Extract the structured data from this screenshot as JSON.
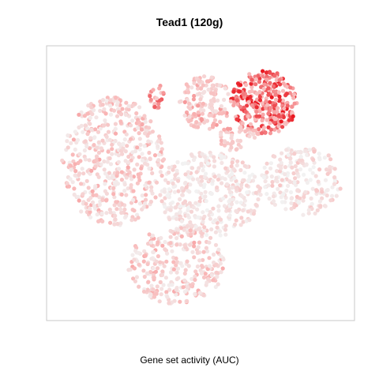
{
  "chart_data": {
    "type": "scatter",
    "title": "Tead1 (120g)",
    "xlabel": "Gene set activity (AUC)",
    "ylabel": "",
    "axes_visible": false,
    "grid": false,
    "legend": "none",
    "palette": {
      "low": "#f2f2f2",
      "mid": "#f9b8b8",
      "high": "#e8111a",
      "frame": "#c8c8c8"
    },
    "clusters": [
      {
        "name": "upper-right",
        "x": [
          0.6,
          0.82
        ],
        "y": [
          0.68,
          0.92
        ],
        "n": 320,
        "activity": [
          0.45,
          1.0
        ]
      },
      {
        "name": "upper-mid",
        "x": [
          0.43,
          0.6
        ],
        "y": [
          0.7,
          0.9
        ],
        "n": 150,
        "activity": [
          0.15,
          0.6
        ]
      },
      {
        "name": "upper-small",
        "x": [
          0.33,
          0.38
        ],
        "y": [
          0.78,
          0.88
        ],
        "n": 25,
        "activity": [
          0.3,
          0.8
        ]
      },
      {
        "name": "left",
        "x": [
          0.04,
          0.38
        ],
        "y": [
          0.34,
          0.82
        ],
        "n": 520,
        "activity": [
          0.05,
          0.55
        ]
      },
      {
        "name": "center",
        "x": [
          0.36,
          0.7
        ],
        "y": [
          0.3,
          0.62
        ],
        "n": 380,
        "activity": [
          0.0,
          0.35
        ]
      },
      {
        "name": "lower",
        "x": [
          0.26,
          0.58
        ],
        "y": [
          0.05,
          0.34
        ],
        "n": 300,
        "activity": [
          0.05,
          0.55
        ]
      },
      {
        "name": "right",
        "x": [
          0.7,
          0.97
        ],
        "y": [
          0.38,
          0.64
        ],
        "n": 210,
        "activity": [
          0.0,
          0.4
        ]
      },
      {
        "name": "mid-right",
        "x": [
          0.55,
          0.68
        ],
        "y": [
          0.62,
          0.72
        ],
        "n": 40,
        "activity": [
          0.2,
          0.6
        ]
      }
    ]
  }
}
